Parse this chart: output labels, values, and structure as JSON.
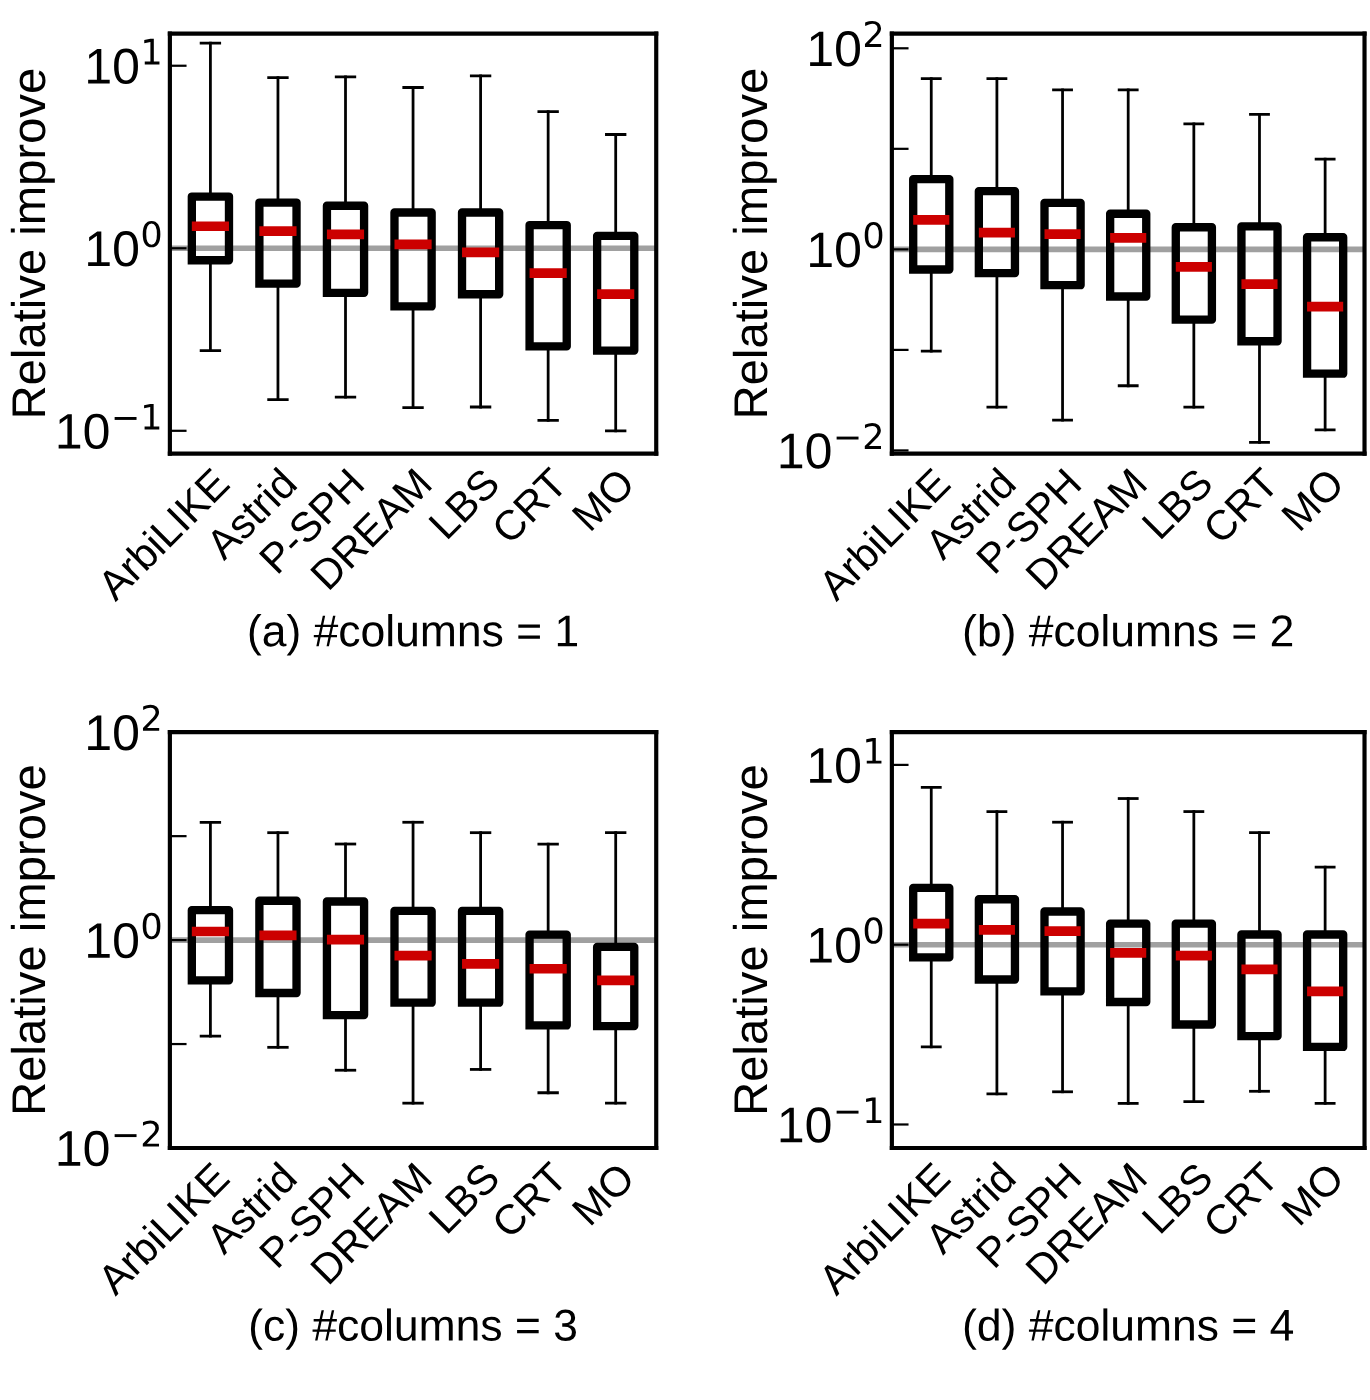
{
  "chart_data": [
    {
      "type": "box",
      "xlabel": "(a) #columns = 1",
      "ylabel": "Relative improve",
      "log": true,
      "categories": [
        "ArbiLIKE",
        "Astrid",
        "P-SPH",
        "DREAM",
        "LBS",
        "CRT",
        "MO"
      ],
      "ylim": [
        0.075,
        15
      ],
      "yticks": [
        {
          "value": 0.1,
          "label": "10$^{−1}$"
        },
        {
          "value": 1,
          "label": "10$^{0}$"
        },
        {
          "value": 10,
          "label": "10$^{1}$"
        }
      ],
      "ref_lines": [
        {
          "axis": "y",
          "value": 1,
          "color": "#a0a0a0"
        }
      ],
      "boxes": [
        {
          "low": 0.275,
          "q1": 0.86,
          "median": 1.32,
          "q3": 1.92,
          "high": 13.3
        },
        {
          "low": 0.148,
          "q1": 0.64,
          "median": 1.24,
          "q3": 1.78,
          "high": 8.6
        },
        {
          "low": 0.153,
          "q1": 0.57,
          "median": 1.19,
          "q3": 1.71,
          "high": 8.7
        },
        {
          "low": 0.134,
          "q1": 0.48,
          "median": 1.05,
          "q3": 1.57,
          "high": 7.6
        },
        {
          "low": 0.135,
          "q1": 0.56,
          "median": 0.95,
          "q3": 1.57,
          "high": 8.8
        },
        {
          "low": 0.114,
          "q1": 0.29,
          "median": 0.73,
          "q3": 1.34,
          "high": 5.6
        },
        {
          "low": 0.1,
          "q1": 0.275,
          "median": 0.56,
          "q3": 1.17,
          "high": 4.2
        }
      ]
    },
    {
      "type": "box",
      "xlabel": "(b) #columns = 2",
      "ylabel": "Relative improve",
      "log": true,
      "categories": [
        "ArbiLIKE",
        "Astrid",
        "P-SPH",
        "DREAM",
        "LBS",
        "CRT",
        "MO"
      ],
      "ylim": [
        0.0093,
        140
      ],
      "yticks": [
        {
          "value": 0.01,
          "label": "10$^{−2}$"
        },
        {
          "value": 0.1,
          "label": null
        },
        {
          "value": 1,
          "label": "10$^{0}$"
        },
        {
          "value": 10,
          "label": null
        },
        {
          "value": 100,
          "label": "10$^{2}$"
        }
      ],
      "ref_lines": [
        {
          "axis": "y",
          "value": 1,
          "color": "#a0a0a0"
        }
      ],
      "boxes": [
        {
          "low": 0.097,
          "q1": 0.63,
          "median": 1.96,
          "q3": 5.0,
          "high": 50
        },
        {
          "low": 0.027,
          "q1": 0.58,
          "median": 1.47,
          "q3": 3.8,
          "high": 50
        },
        {
          "low": 0.02,
          "q1": 0.44,
          "median": 1.42,
          "q3": 2.9,
          "high": 38.6
        },
        {
          "low": 0.044,
          "q1": 0.34,
          "median": 1.3,
          "q3": 2.26,
          "high": 38.6
        },
        {
          "low": 0.027,
          "q1": 0.2,
          "median": 0.67,
          "q3": 1.66,
          "high": 17.7
        },
        {
          "low": 0.012,
          "q1": 0.122,
          "median": 0.45,
          "q3": 1.69,
          "high": 22
        },
        {
          "low": 0.016,
          "q1": 0.058,
          "median": 0.27,
          "q3": 1.32,
          "high": 7.9
        }
      ]
    },
    {
      "type": "box",
      "xlabel": "(c) #columns = 3",
      "ylabel": "Relative improve",
      "log": true,
      "categories": [
        "ArbiLIKE",
        "Astrid",
        "P-SPH",
        "DREAM",
        "LBS",
        "CRT",
        "MO"
      ],
      "ylim": [
        0.01,
        100
      ],
      "yticks": [
        {
          "value": 0.01,
          "label": "10$^{−2}$"
        },
        {
          "value": 0.1,
          "label": null
        },
        {
          "value": 1,
          "label": "10$^{0}$"
        },
        {
          "value": 10,
          "label": null
        },
        {
          "value": 100,
          "label": "10$^{2}$"
        }
      ],
      "ref_lines": [
        {
          "axis": "y",
          "value": 1,
          "color": "#a0a0a0"
        }
      ],
      "boxes": [
        {
          "low": 0.119,
          "q1": 0.41,
          "median": 1.21,
          "q3": 1.94,
          "high": 13.6
        },
        {
          "low": 0.093,
          "q1": 0.31,
          "median": 1.11,
          "q3": 2.39,
          "high": 10.8
        },
        {
          "low": 0.056,
          "q1": 0.19,
          "median": 1.01,
          "q3": 2.35,
          "high": 8.4
        },
        {
          "low": 0.027,
          "q1": 0.25,
          "median": 0.71,
          "q3": 1.91,
          "high": 13.6
        },
        {
          "low": 0.057,
          "q1": 0.25,
          "median": 0.59,
          "q3": 1.91,
          "high": 10.8
        },
        {
          "low": 0.034,
          "q1": 0.151,
          "median": 0.53,
          "q3": 1.13,
          "high": 8.4
        },
        {
          "low": 0.027,
          "q1": 0.149,
          "median": 0.41,
          "q3": 0.86,
          "high": 10.8
        }
      ]
    },
    {
      "type": "box",
      "xlabel": "(d) #columns = 4",
      "ylabel": "Relative improve",
      "log": true,
      "categories": [
        "ArbiLIKE",
        "Astrid",
        "P-SPH",
        "DREAM",
        "LBS",
        "CRT",
        "MO"
      ],
      "ylim": [
        0.074,
        15.2
      ],
      "yticks": [
        {
          "value": 0.1,
          "label": "10$^{−1}$"
        },
        {
          "value": 1,
          "label": "10$^{0}$"
        },
        {
          "value": 10,
          "label": "10$^{1}$"
        }
      ],
      "ref_lines": [
        {
          "axis": "y",
          "value": 1,
          "color": "#a0a0a0"
        }
      ],
      "boxes": [
        {
          "low": 0.27,
          "q1": 0.85,
          "median": 1.31,
          "q3": 2.07,
          "high": 7.5
        },
        {
          "low": 0.148,
          "q1": 0.64,
          "median": 1.21,
          "q3": 1.79,
          "high": 5.5
        },
        {
          "low": 0.152,
          "q1": 0.55,
          "median": 1.19,
          "q3": 1.53,
          "high": 4.8
        },
        {
          "low": 0.131,
          "q1": 0.48,
          "median": 0.9,
          "q3": 1.31,
          "high": 6.5
        },
        {
          "low": 0.134,
          "q1": 0.36,
          "median": 0.87,
          "q3": 1.31,
          "high": 5.5
        },
        {
          "low": 0.153,
          "q1": 0.31,
          "median": 0.73,
          "q3": 1.14,
          "high": 4.2
        },
        {
          "low": 0.131,
          "q1": 0.27,
          "median": 0.55,
          "q3": 1.14,
          "high": 2.7
        }
      ]
    }
  ]
}
